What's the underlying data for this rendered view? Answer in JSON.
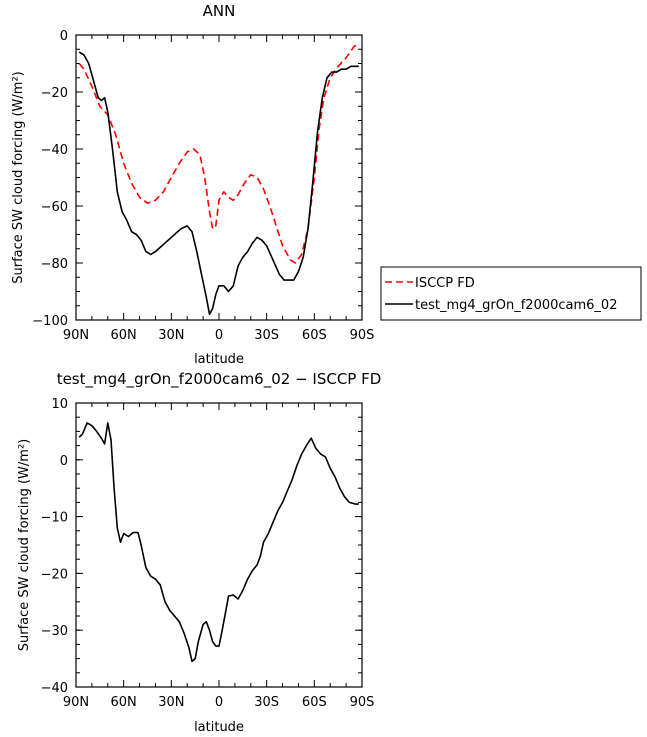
{
  "chart_data": [
    {
      "type": "line",
      "title": "ANN",
      "xlabel": "latitude",
      "ylabel": "Surface SW cloud forcing (W/m²)",
      "xlim": [
        -90,
        90
      ],
      "ylim": [
        -100,
        0
      ],
      "x_ticks": [
        "90N",
        "60N",
        "30N",
        "0",
        "30S",
        "60S",
        "90S"
      ],
      "y_ticks": [
        "0",
        "−20",
        "−40",
        "−60",
        "−80",
        "−100"
      ],
      "legend": "right",
      "series": [
        {
          "name": "ISCCP FD",
          "color": "#ff0000",
          "dash": "dashed",
          "points": [
            [
              -88,
              -10
            ],
            [
              -85,
              -12
            ],
            [
              -80,
              -18
            ],
            [
              -75,
              -25
            ],
            [
              -70,
              -28
            ],
            [
              -65,
              -35
            ],
            [
              -60,
              -45
            ],
            [
              -55,
              -52
            ],
            [
              -50,
              -57
            ],
            [
              -45,
              -59
            ],
            [
              -40,
              -58
            ],
            [
              -35,
              -55
            ],
            [
              -30,
              -50
            ],
            [
              -25,
              -45
            ],
            [
              -20,
              -41
            ],
            [
              -16,
              -40
            ],
            [
              -12,
              -42
            ],
            [
              -9,
              -50
            ],
            [
              -6,
              -62
            ],
            [
              -4,
              -68
            ],
            [
              -2,
              -67
            ],
            [
              0,
              -58
            ],
            [
              3,
              -55
            ],
            [
              6,
              -57
            ],
            [
              9,
              -58
            ],
            [
              12,
              -56
            ],
            [
              16,
              -52
            ],
            [
              20,
              -49
            ],
            [
              24,
              -50
            ],
            [
              28,
              -54
            ],
            [
              32,
              -60
            ],
            [
              36,
              -67
            ],
            [
              40,
              -74
            ],
            [
              45,
              -79
            ],
            [
              48,
              -80
            ],
            [
              52,
              -77
            ],
            [
              56,
              -68
            ],
            [
              60,
              -50
            ],
            [
              63,
              -33
            ],
            [
              66,
              -22
            ],
            [
              70,
              -15
            ],
            [
              75,
              -11
            ],
            [
              80,
              -8
            ],
            [
              85,
              -4
            ],
            [
              88,
              -3
            ]
          ]
        },
        {
          "name": "test_mg4_grOn_f2000cam6_02",
          "color": "#000000",
          "dash": "solid",
          "points": [
            [
              -88,
              -6
            ],
            [
              -85,
              -7
            ],
            [
              -82,
              -10
            ],
            [
              -79,
              -16
            ],
            [
              -76,
              -22
            ],
            [
              -74,
              -23
            ],
            [
              -72,
              -22
            ],
            [
              -70,
              -27
            ],
            [
              -67,
              -40
            ],
            [
              -64,
              -55
            ],
            [
              -61,
              -62
            ],
            [
              -58,
              -65
            ],
            [
              -55,
              -69
            ],
            [
              -52,
              -70
            ],
            [
              -49,
              -72
            ],
            [
              -46,
              -76
            ],
            [
              -43,
              -77
            ],
            [
              -40,
              -76
            ],
            [
              -36,
              -74
            ],
            [
              -32,
              -72
            ],
            [
              -28,
              -70
            ],
            [
              -24,
              -68
            ],
            [
              -20,
              -67
            ],
            [
              -17,
              -69
            ],
            [
              -14,
              -76
            ],
            [
              -11,
              -84
            ],
            [
              -8,
              -92
            ],
            [
              -6,
              -98
            ],
            [
              -4,
              -96
            ],
            [
              -2,
              -91
            ],
            [
              0,
              -88
            ],
            [
              3,
              -88
            ],
            [
              6,
              -90
            ],
            [
              9,
              -88
            ],
            [
              12,
              -81
            ],
            [
              15,
              -78
            ],
            [
              18,
              -76
            ],
            [
              21,
              -73
            ],
            [
              24,
              -71
            ],
            [
              27,
              -72
            ],
            [
              30,
              -74
            ],
            [
              34,
              -79
            ],
            [
              38,
              -84
            ],
            [
              41,
              -86
            ],
            [
              44,
              -86
            ],
            [
              47,
              -86
            ],
            [
              50,
              -83
            ],
            [
              53,
              -78
            ],
            [
              56,
              -68
            ],
            [
              59,
              -52
            ],
            [
              62,
              -34
            ],
            [
              65,
              -22
            ],
            [
              68,
              -15
            ],
            [
              71,
              -13
            ],
            [
              74,
              -13
            ],
            [
              77,
              -12
            ],
            [
              80,
              -12
            ],
            [
              83,
              -11
            ],
            [
              86,
              -11
            ],
            [
              88,
              -11
            ]
          ]
        }
      ]
    },
    {
      "type": "line",
      "title": "test_mg4_grOn_f2000cam6_02 − ISCCP FD",
      "xlabel": "latitude",
      "ylabel": "Surface SW cloud forcing (W/m²)",
      "xlim": [
        -90,
        90
      ],
      "ylim": [
        -40,
        10
      ],
      "x_ticks": [
        "90N",
        "60N",
        "30N",
        "0",
        "30S",
        "60S",
        "90S"
      ],
      "y_ticks": [
        "10",
        "0",
        "−10",
        "−20",
        "−30",
        "−40"
      ],
      "series": [
        {
          "color": "#000000",
          "dash": "solid",
          "points": [
            [
              -88,
              4
            ],
            [
              -86,
              4.5
            ],
            [
              -83,
              6.5
            ],
            [
              -80,
              6
            ],
            [
              -77,
              5
            ],
            [
              -74,
              3.8
            ],
            [
              -72,
              2.8
            ],
            [
              -70,
              6.5
            ],
            [
              -68,
              3.5
            ],
            [
              -66,
              -5
            ],
            [
              -64,
              -12
            ],
            [
              -62,
              -14.5
            ],
            [
              -60,
              -13
            ],
            [
              -57,
              -13.5
            ],
            [
              -54,
              -12.8
            ],
            [
              -51,
              -12.8
            ],
            [
              -49,
              -15
            ],
            [
              -46,
              -19
            ],
            [
              -43,
              -20.5
            ],
            [
              -40,
              -21
            ],
            [
              -37,
              -22
            ],
            [
              -34,
              -25
            ],
            [
              -31,
              -26.5
            ],
            [
              -28,
              -27.5
            ],
            [
              -25,
              -28.5
            ],
            [
              -22,
              -30.5
            ],
            [
              -19,
              -33
            ],
            [
              -17,
              -35.5
            ],
            [
              -15,
              -35
            ],
            [
              -13,
              -32
            ],
            [
              -10,
              -29
            ],
            [
              -8,
              -28.5
            ],
            [
              -6,
              -30
            ],
            [
              -4,
              -32
            ],
            [
              -2,
              -32.8
            ],
            [
              0,
              -32.8
            ],
            [
              2,
              -30
            ],
            [
              4,
              -27
            ],
            [
              6,
              -24
            ],
            [
              9,
              -23.8
            ],
            [
              12,
              -24.5
            ],
            [
              15,
              -23
            ],
            [
              18,
              -21
            ],
            [
              21,
              -19.5
            ],
            [
              24,
              -18.5
            ],
            [
              26,
              -17
            ],
            [
              28,
              -14.5
            ],
            [
              31,
              -13
            ],
            [
              34,
              -11
            ],
            [
              37,
              -9
            ],
            [
              40,
              -7.5
            ],
            [
              43,
              -5.5
            ],
            [
              46,
              -3.5
            ],
            [
              49,
              -1
            ],
            [
              52,
              1
            ],
            [
              55,
              2.5
            ],
            [
              58,
              3.8
            ],
            [
              61,
              2
            ],
            [
              64,
              1
            ],
            [
              67,
              0.5
            ],
            [
              70,
              -1.5
            ],
            [
              73,
              -3
            ],
            [
              76,
              -5
            ],
            [
              79,
              -6.5
            ],
            [
              82,
              -7.5
            ],
            [
              86,
              -7.8
            ],
            [
              88,
              -7.8
            ]
          ]
        }
      ]
    }
  ]
}
